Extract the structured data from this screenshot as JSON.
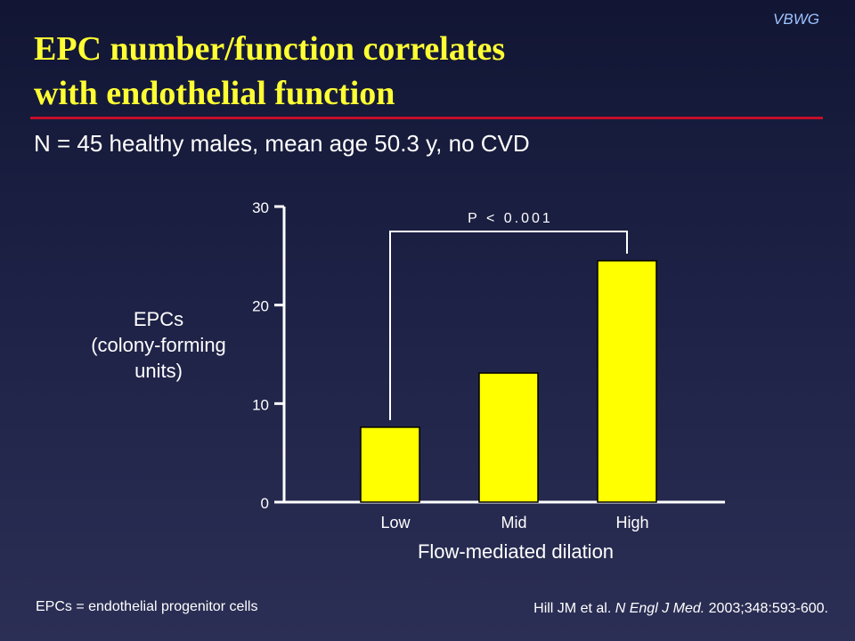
{
  "slide": {
    "badge": "VBWG",
    "title_lines": [
      "EPC number/function correlates",
      "with endothelial function"
    ],
    "subtitle": "N = 45 healthy males, mean age 50.3 y, no CVD",
    "footnote": "EPCs = endothelial progenitor cells",
    "citation": {
      "authors": "Hill JM et al.",
      "journal": "N Engl J Med.",
      "ref": "2003;348:593-600."
    }
  },
  "chart_data": {
    "type": "bar",
    "categories": [
      "Low",
      "Mid",
      "High"
    ],
    "values": [
      7.6,
      13.1,
      24.5
    ],
    "xlabel": "Flow-mediated dilation",
    "ylabel_lines": [
      "EPCs",
      "(colony-forming",
      "units)"
    ],
    "ylim": [
      0,
      30
    ],
    "yticks": [
      0,
      10,
      20,
      30
    ],
    "annotation": {
      "text": "P < 0.001",
      "from_category": "Low",
      "to_category": "High"
    },
    "bar_color": "#ffff00",
    "grid": false,
    "legend": "none"
  }
}
